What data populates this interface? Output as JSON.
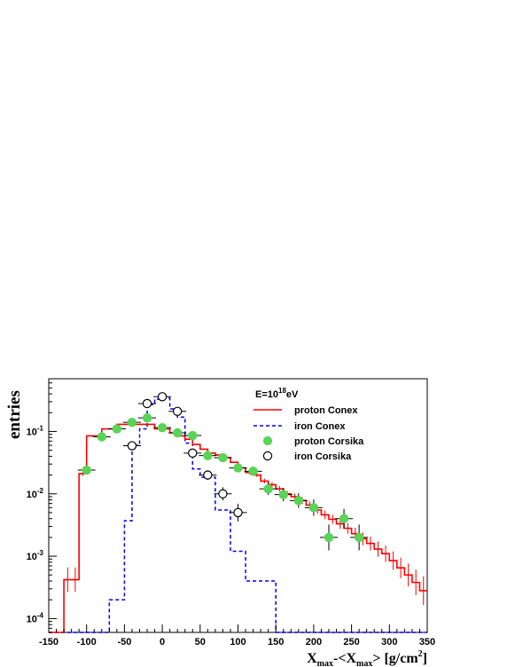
{
  "chart_data": {
    "type": "line",
    "xlabel": "X_max-<X_max> [g/cm^2]",
    "ylabel": "entries",
    "xlim": [
      -150,
      350
    ],
    "ylim": [
      6e-05,
      0.7
    ],
    "ylog": true,
    "xticks": [
      -150,
      -100,
      -50,
      0,
      50,
      100,
      150,
      200,
      250,
      300,
      350
    ],
    "xtick_labels": [
      "-150",
      "-100",
      "-50",
      "0",
      "50",
      "100",
      "150",
      "200",
      "250",
      "300",
      "350"
    ],
    "yticks": [
      0.0001,
      0.001,
      0.01,
      0.1
    ],
    "ytick_labels": [
      "10^-4",
      "10^-3",
      "10^-2",
      "10^-1"
    ],
    "legend": {
      "placement": "top-right",
      "header": "E=10^18eV",
      "entries": [
        "proton Conex",
        "iron Conex",
        "proton Corsika",
        "iron Corsika"
      ]
    },
    "series": [
      {
        "name": "proton Conex",
        "style": "step",
        "color": "#ff0000",
        "bin_edges": [
          -150,
          -140,
          -130,
          -120,
          -110,
          -100,
          -90,
          -80,
          -70,
          -60,
          -50,
          -40,
          -30,
          -20,
          -10,
          0,
          10,
          20,
          30,
          40,
          50,
          60,
          70,
          80,
          90,
          100,
          110,
          120,
          130,
          140,
          150,
          160,
          170,
          180,
          190,
          200,
          210,
          220,
          230,
          240,
          250,
          260,
          270,
          280,
          290,
          300,
          310,
          320,
          330,
          340,
          350
        ],
        "values": [
          6e-05,
          6e-05,
          0.00042,
          0.00042,
          0.021,
          0.085,
          0.085,
          0.11,
          0.11,
          0.13,
          0.13,
          0.13,
          0.13,
          0.13,
          0.11,
          0.11,
          0.095,
          0.085,
          0.075,
          0.062,
          0.052,
          0.045,
          0.042,
          0.038,
          0.032,
          0.026,
          0.022,
          0.02,
          0.016,
          0.014,
          0.012,
          0.01,
          0.009,
          0.0078,
          0.0066,
          0.0055,
          0.0046,
          0.0039,
          0.0033,
          0.0028,
          0.0023,
          0.0019,
          0.0016,
          0.0013,
          0.0011,
          0.00085,
          0.00065,
          0.0005,
          0.00038,
          0.00028
        ]
      },
      {
        "name": "iron Conex",
        "style": "step-dashed",
        "color": "#0000ff",
        "bin_edges": [
          -150,
          -140,
          -130,
          -120,
          -110,
          -100,
          -90,
          -80,
          -70,
          -60,
          -50,
          -40,
          -30,
          -20,
          -10,
          0,
          10,
          20,
          30,
          40,
          50,
          60,
          70,
          80,
          90,
          100,
          110,
          120,
          130,
          140,
          150,
          160,
          170,
          180,
          190,
          200,
          210,
          220,
          230,
          240,
          250,
          260,
          270,
          280,
          290,
          300,
          310,
          320,
          330,
          340,
          350
        ],
        "values": [
          0,
          0,
          0,
          0,
          0,
          0,
          0,
          0,
          0.0002,
          0.0002,
          0.0037,
          0.06,
          0.11,
          0.27,
          0.33,
          0.34,
          0.23,
          0.17,
          0.065,
          0.025,
          0.0185,
          0.0185,
          0.0055,
          0.0055,
          0.0012,
          0.0012,
          0.0004,
          0.0004,
          0.0004,
          0.0004,
          0,
          0,
          0,
          0,
          0,
          0,
          0,
          0,
          0,
          0,
          0,
          0,
          0,
          0,
          0,
          0,
          0,
          0,
          0,
          0
        ]
      },
      {
        "name": "proton Corsika",
        "style": "marker-filled",
        "color": "#56d556",
        "x": [
          -100,
          -80,
          -60,
          -40,
          -20,
          0,
          20,
          40,
          60,
          80,
          100,
          120,
          140,
          160,
          180,
          200,
          220,
          240,
          260
        ],
        "y": [
          0.024,
          0.082,
          0.11,
          0.14,
          0.165,
          0.115,
          0.095,
          0.086,
          0.041,
          0.038,
          0.026,
          0.023,
          0.012,
          0.0097,
          0.0078,
          0.006,
          0.002,
          0.004,
          0.002
        ]
      },
      {
        "name": "iron Corsika",
        "style": "marker-open",
        "color": "#000000",
        "x": [
          -40,
          -20,
          0,
          20,
          40,
          60,
          80,
          100
        ],
        "y": [
          0.059,
          0.28,
          0.36,
          0.21,
          0.045,
          0.02,
          0.01,
          0.005
        ]
      }
    ]
  }
}
